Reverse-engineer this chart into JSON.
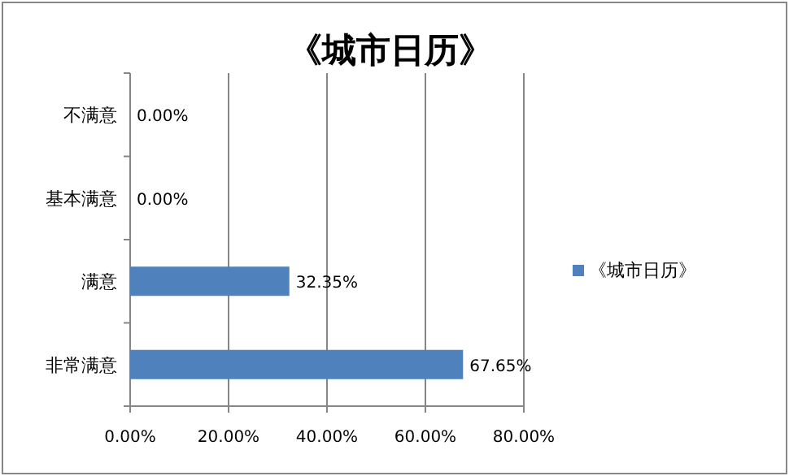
{
  "chart_data": {
    "type": "bar",
    "orientation": "horizontal",
    "title": "《城市日历》",
    "categories": [
      "不满意",
      "基本满意",
      "满意",
      "非常满意"
    ],
    "series": [
      {
        "name": "《城市日历》",
        "color": "#4f81bd",
        "values": [
          0,
          0,
          32.35,
          67.65
        ],
        "value_labels": [
          "0.00%",
          "0.00%",
          "32.35%",
          "67.65%"
        ]
      }
    ],
    "xlim": [
      0,
      80
    ],
    "xticks": [
      {
        "value": 0,
        "label": "0.00%"
      },
      {
        "value": 20,
        "label": "20.00%"
      },
      {
        "value": 40,
        "label": "40.00%"
      },
      {
        "value": 60,
        "label": "60.00%"
      },
      {
        "value": 80,
        "label": "80.00%"
      }
    ],
    "grid": "x",
    "legend": "right"
  }
}
